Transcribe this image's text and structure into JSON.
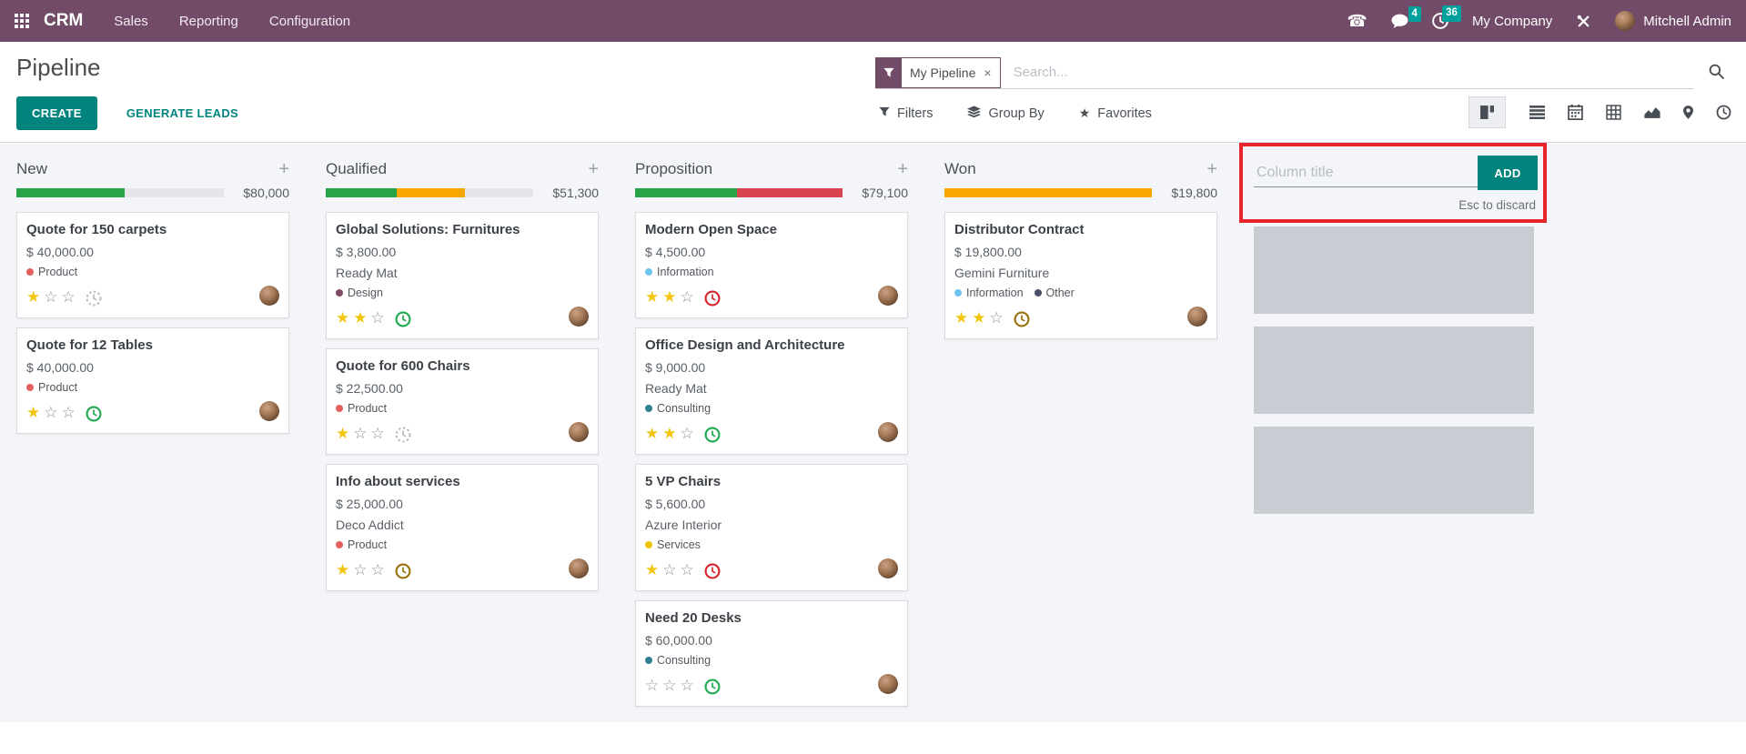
{
  "navbar": {
    "app": "CRM",
    "menus": [
      "Sales",
      "Reporting",
      "Configuration"
    ],
    "messages_badge": "4",
    "activities_badge": "36",
    "company": "My Company",
    "user": "Mitchell Admin"
  },
  "panel": {
    "title": "Pipeline",
    "create": "CREATE",
    "generate": "GENERATE LEADS",
    "facet": "My Pipeline",
    "search_placeholder": "Search...",
    "filters": "Filters",
    "group_by": "Group By",
    "favorites": "Favorites"
  },
  "icons": {
    "phone": "☎",
    "facet_remove": "×",
    "plus": "+",
    "star_filled": "★",
    "star_empty": "☆"
  },
  "colors": {
    "navbar_bg": "#714B67",
    "accent_teal": "#00847d",
    "badge_teal": "#00A09D",
    "annotation_red": "#e7242b",
    "segments": {
      "green": "#28a348",
      "orange": "#f9a602",
      "red": "#d9434f",
      "muted": "#e4e6ea"
    },
    "activity": {
      "none": "#b9bec4",
      "planned": "#1faa51",
      "today": "#99720e",
      "overdue": "#d6252e"
    },
    "star_filled": "#f2c511",
    "star_empty": "#8a9097"
  },
  "kanban": {
    "columns": [
      {
        "title": "New",
        "amount": "$80,000",
        "segments": [
          {
            "color": "green",
            "pct": 52
          },
          {
            "color": "muted",
            "pct": 48
          }
        ],
        "cards": [
          {
            "title": "Quote for 150 carpets",
            "amount": "$ 40,000.00",
            "partner": "",
            "tags": [
              {
                "label": "Product",
                "color": "#e4605e"
              }
            ],
            "stars": 1,
            "activity": "none"
          },
          {
            "title": "Quote for 12 Tables",
            "amount": "$ 40,000.00",
            "partner": "",
            "tags": [
              {
                "label": "Product",
                "color": "#e4605e"
              }
            ],
            "stars": 1,
            "activity": "planned"
          }
        ]
      },
      {
        "title": "Qualified",
        "amount": "$51,300",
        "segments": [
          {
            "color": "green",
            "pct": 34
          },
          {
            "color": "orange",
            "pct": 33
          },
          {
            "color": "muted",
            "pct": 33
          }
        ],
        "cards": [
          {
            "title": "Global Solutions: Furnitures",
            "amount": "$ 3,800.00",
            "partner": "Ready Mat",
            "tags": [
              {
                "label": "Design",
                "color": "#814968"
              }
            ],
            "stars": 2,
            "activity": "planned"
          },
          {
            "title": "Quote for 600 Chairs",
            "amount": "$ 22,500.00",
            "partner": "",
            "tags": [
              {
                "label": "Product",
                "color": "#e4605e"
              }
            ],
            "stars": 1,
            "activity": "none"
          },
          {
            "title": "Info about services",
            "amount": "$ 25,000.00",
            "partner": "Deco Addict",
            "tags": [
              {
                "label": "Product",
                "color": "#e4605e"
              }
            ],
            "stars": 1,
            "activity": "today"
          }
        ]
      },
      {
        "title": "Proposition",
        "amount": "$79,100",
        "segments": [
          {
            "color": "green",
            "pct": 49
          },
          {
            "color": "red",
            "pct": 51
          }
        ],
        "cards": [
          {
            "title": "Modern Open Space",
            "amount": "$ 4,500.00",
            "partner": "",
            "tags": [
              {
                "label": "Information",
                "color": "#6fc4ee"
              }
            ],
            "stars": 2,
            "activity": "overdue"
          },
          {
            "title": "Office Design and Architecture",
            "amount": "$ 9,000.00",
            "partner": "Ready Mat",
            "tags": [
              {
                "label": "Consulting",
                "color": "#2f7f93"
              }
            ],
            "stars": 2,
            "activity": "planned"
          },
          {
            "title": "5 VP Chairs",
            "amount": "$ 5,600.00",
            "partner": "Azure Interior",
            "tags": [
              {
                "label": "Services",
                "color": "#efc200"
              }
            ],
            "stars": 1,
            "activity": "overdue"
          },
          {
            "title": "Need 20 Desks",
            "amount": "$ 60,000.00",
            "partner": "",
            "tags": [
              {
                "label": "Consulting",
                "color": "#2f7f93"
              }
            ],
            "stars": 0,
            "activity": "planned"
          }
        ]
      },
      {
        "title": "Won",
        "amount": "$19,800",
        "segments": [
          {
            "color": "orange",
            "pct": 100
          }
        ],
        "cards": [
          {
            "title": "Distributor Contract",
            "amount": "$ 19,800.00",
            "partner": "Gemini Furniture",
            "tags": [
              {
                "label": "Information",
                "color": "#6fc4ee"
              },
              {
                "label": "Other",
                "color": "#484e66"
              }
            ],
            "stars": 2,
            "activity": "today"
          }
        ]
      }
    ],
    "quick_create": {
      "placeholder": "Column title",
      "add": "ADD",
      "hint": "Esc to discard",
      "ghosts": 3
    }
  }
}
